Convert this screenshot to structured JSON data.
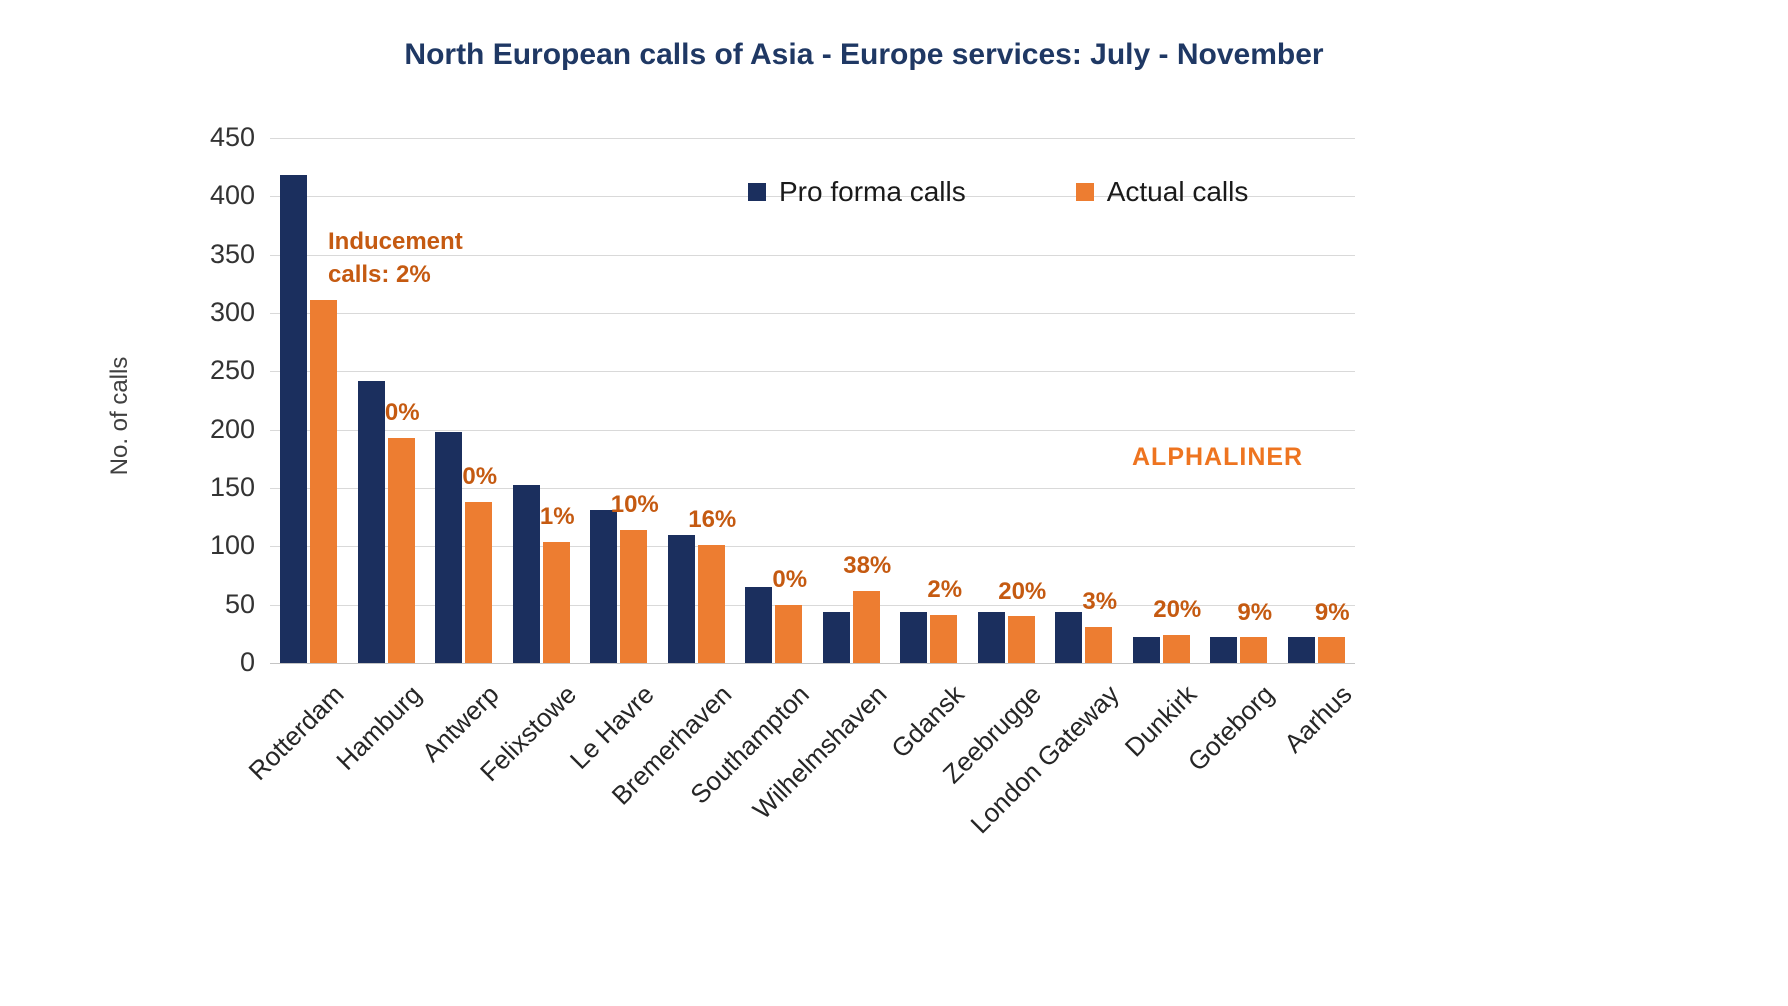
{
  "watermark": "ALPHALINER",
  "colors": {
    "navy": "#1b2f5e",
    "orange": "#ed7d31",
    "annotation": "#c55a11",
    "title": "#1f3864",
    "grid": "#d9d9d9"
  },
  "chart_data": {
    "type": "bar",
    "title": "North European calls of Asia - Europe services: July - November",
    "xlabel": "",
    "ylabel": "No. of calls",
    "ylim": [
      0,
      450
    ],
    "ytick_step": 50,
    "grid": true,
    "legend_position": "top-inside",
    "categories": [
      "Rotterdam",
      "Hamburg",
      "Antwerp",
      "Felixstowe",
      "Le Havre",
      "Bremerhaven",
      "Southampton",
      "Wilhelmshaven",
      "Gdansk",
      "Zeebrugge",
      "London Gateway",
      "Dunkirk",
      "Goteborg",
      "Aarhus"
    ],
    "series": [
      {
        "name": "Pro forma calls",
        "color": "#1b2f5e",
        "values": [
          418,
          242,
          198,
          153,
          131,
          110,
          65,
          44,
          44,
          44,
          44,
          22,
          22,
          22
        ]
      },
      {
        "name": "Actual calls",
        "color": "#ed7d31",
        "values": [
          311,
          193,
          138,
          104,
          114,
          101,
          50,
          62,
          41,
          40,
          31,
          24,
          22,
          22
        ]
      }
    ],
    "annotations": [
      {
        "category": "Rotterdam",
        "text": "Inducement calls: 2%",
        "placement": "side"
      },
      {
        "category": "Hamburg",
        "text": "0%"
      },
      {
        "category": "Antwerp",
        "text": "0%"
      },
      {
        "category": "Felixstowe",
        "text": "1%"
      },
      {
        "category": "Le Havre",
        "text": "10%"
      },
      {
        "category": "Bremerhaven",
        "text": "16%"
      },
      {
        "category": "Southampton",
        "text": "0%"
      },
      {
        "category": "Wilhelmshaven",
        "text": "38%"
      },
      {
        "category": "Gdansk",
        "text": "2%"
      },
      {
        "category": "Zeebrugge",
        "text": "20%"
      },
      {
        "category": "London Gateway",
        "text": "3%"
      },
      {
        "category": "Dunkirk",
        "text": "20%"
      },
      {
        "category": "Goteborg",
        "text": "9%"
      },
      {
        "category": "Aarhus",
        "text": "9%"
      }
    ]
  }
}
